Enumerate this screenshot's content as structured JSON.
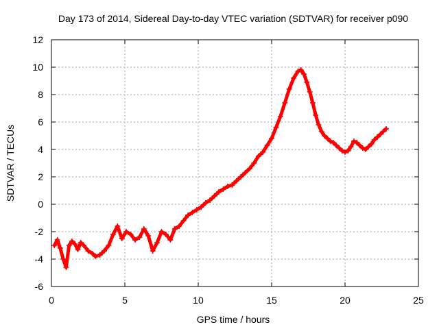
{
  "chart_data": {
    "type": "scatter",
    "title": "Day 173 of 2014, Sidereal Day-to-day VTEC variation (SDTVAR) for receiver p090",
    "xlabel": "GPS time / hours",
    "ylabel": "SDTVAR / TECUs",
    "xlim": [
      0,
      25
    ],
    "ylim": [
      -6,
      12
    ],
    "xticks": [
      0,
      5,
      10,
      15,
      20,
      25
    ],
    "yticks": [
      -6,
      -4,
      -2,
      0,
      2,
      4,
      6,
      8,
      10,
      12
    ],
    "grid": true,
    "marker": "+",
    "series": [
      {
        "name": "SDTVAR",
        "color": "#ff0000",
        "x": [
          0.2,
          0.4,
          0.6,
          0.8,
          1.0,
          1.2,
          1.4,
          1.6,
          1.8,
          2.0,
          2.2,
          2.5,
          2.8,
          3.0,
          3.3,
          3.6,
          3.9,
          4.2,
          4.5,
          4.8,
          5.1,
          5.4,
          5.7,
          6.0,
          6.3,
          6.6,
          6.9,
          7.2,
          7.5,
          7.8,
          8.1,
          8.4,
          8.7,
          9.0,
          9.3,
          9.6,
          9.9,
          10.2,
          10.5,
          10.8,
          11.1,
          11.4,
          11.7,
          12.0,
          12.3,
          12.6,
          12.9,
          13.2,
          13.5,
          13.8,
          14.1,
          14.4,
          14.7,
          15.0,
          15.3,
          15.6,
          15.9,
          16.2,
          16.5,
          16.8,
          17.0,
          17.2,
          17.4,
          17.6,
          17.8,
          18.0,
          18.2,
          18.4,
          18.6,
          18.8,
          19.0,
          19.2,
          19.4,
          19.6,
          19.8,
          20.0,
          20.2,
          20.4,
          20.6,
          20.8,
          21.0,
          21.2,
          21.4,
          21.6,
          21.8,
          22.0,
          22.2,
          22.4,
          22.6,
          22.8
        ],
        "y": [
          -3.0,
          -2.6,
          -3.2,
          -4.0,
          -4.6,
          -3.0,
          -2.7,
          -2.9,
          -3.3,
          -2.8,
          -3.0,
          -3.4,
          -3.6,
          -3.8,
          -3.7,
          -3.4,
          -3.0,
          -2.2,
          -1.6,
          -2.5,
          -2.0,
          -2.2,
          -2.6,
          -2.4,
          -1.8,
          -2.3,
          -3.4,
          -2.8,
          -2.0,
          -2.2,
          -2.6,
          -1.8,
          -1.6,
          -1.2,
          -0.8,
          -0.6,
          -0.4,
          -0.2,
          0.1,
          0.3,
          0.6,
          0.9,
          1.1,
          1.3,
          1.4,
          1.7,
          2.0,
          2.3,
          2.6,
          3.0,
          3.5,
          3.8,
          4.3,
          4.8,
          5.6,
          6.4,
          7.4,
          8.4,
          9.2,
          9.7,
          9.8,
          9.5,
          8.9,
          8.2,
          7.4,
          6.5,
          5.8,
          5.3,
          5.0,
          4.8,
          4.6,
          4.5,
          4.3,
          4.1,
          3.9,
          3.8,
          3.9,
          4.2,
          4.6,
          4.5,
          4.3,
          4.1,
          4.0,
          4.2,
          4.4,
          4.7,
          4.9,
          5.1,
          5.3,
          5.5
        ]
      }
    ]
  }
}
